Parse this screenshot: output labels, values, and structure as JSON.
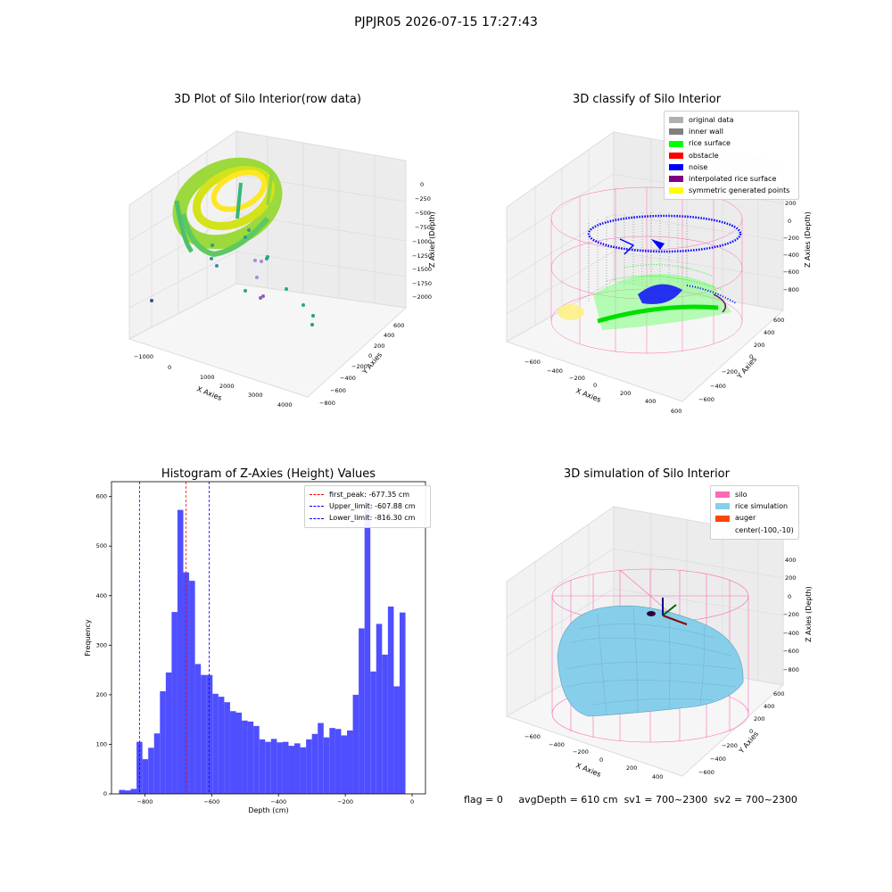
{
  "suptitle": "PJPJR05 2026-07-15 17:27:43",
  "panels": {
    "raw": {
      "title": "3D Plot of Silo Interior(row data)",
      "xlabel": "X Axies",
      "ylabel": "Y Axies",
      "zlabel": "Z Axies (Depth)",
      "xticks": [
        "−1000",
        "0",
        "1000",
        "2000",
        "3000",
        "4000"
      ],
      "yticks": [
        "−800",
        "−600",
        "−400",
        "−200",
        "0",
        "200",
        "400",
        "600"
      ],
      "zticks": [
        "0",
        "−250",
        "−500",
        "−750",
        "−1000",
        "−1250",
        "−1500",
        "−1750",
        "−2000"
      ]
    },
    "classify": {
      "title": "3D classify of Silo Interior",
      "xlabel": "X Axies",
      "ylabel": "Y Axies",
      "zlabel": "Z Axies (Depth)",
      "xticks": [
        "−600",
        "−400",
        "−200",
        "0",
        "200",
        "400",
        "600"
      ],
      "yticks": [
        "−600",
        "−400",
        "−200",
        "0",
        "200",
        "400",
        "600"
      ],
      "zticks": [
        "200",
        "0",
        "−200",
        "−400",
        "−600",
        "−800"
      ],
      "legend": [
        {
          "label": "original data",
          "color": "#b0b0b0"
        },
        {
          "label": "inner wall",
          "color": "#808080"
        },
        {
          "label": "rice surface",
          "color": "#00ff00"
        },
        {
          "label": "obstacle",
          "color": "#ff0000"
        },
        {
          "label": "noise",
          "color": "#0000ff"
        },
        {
          "label": "interpolated rice surface",
          "color": "#800080"
        },
        {
          "label": "symmetric generated points",
          "color": "#ffff00"
        }
      ]
    },
    "simulation": {
      "title": "3D simulation of Silo Interior",
      "xlabel": "X Axies",
      "ylabel": "Y Axies",
      "zlabel": "Z Axies (Depth)",
      "xticks": [
        "−600",
        "−400",
        "−200",
        "0",
        "200",
        "400"
      ],
      "yticks": [
        "−600",
        "−400",
        "−200",
        "0",
        "200",
        "400",
        "600"
      ],
      "zticks": [
        "400",
        "200",
        "0",
        "−200",
        "−400",
        "−600",
        "−800"
      ],
      "legend": [
        {
          "label": "silo",
          "color": "#ff69b4"
        },
        {
          "label": "rice simulation",
          "color": "#87ceeb"
        },
        {
          "label": "auger",
          "color": "#ff4500"
        },
        {
          "label": "center(-100,-10)",
          "color": ""
        }
      ]
    }
  },
  "footer": {
    "flag": "flag = 0",
    "avg": "avgDepth = 610 cm",
    "sv1": "sv1 = 700~2300",
    "sv2": "sv2 = 700~2300"
  },
  "chart_data": [
    {
      "type": "bar",
      "title": "Histogram of Z-Axies (Height) Values",
      "xlabel": "Depth (cm)",
      "ylabel": "Frequency",
      "xlim": [
        -900,
        40
      ],
      "ylim": [
        0,
        630
      ],
      "xticks": [
        -800,
        -600,
        -400,
        -200,
        0
      ],
      "yticks": [
        0,
        100,
        200,
        300,
        400,
        500,
        600
      ],
      "bin_width": 17.5,
      "bin_start": -877.5,
      "values": [
        8,
        7,
        10,
        105,
        70,
        93,
        122,
        207,
        245,
        367,
        573,
        447,
        430,
        262,
        240,
        240,
        202,
        196,
        185,
        167,
        164,
        148,
        146,
        137,
        110,
        105,
        111,
        104,
        105,
        97,
        102,
        94,
        110,
        121,
        143,
        114,
        133,
        131,
        118,
        128,
        200,
        334,
        590,
        247,
        343,
        281,
        378,
        217,
        366,
        0
      ],
      "color": "#4f4fff",
      "vlines": [
        {
          "label": "first_peak: -677.35 cm",
          "x": -677.35,
          "color": "#ff0000"
        },
        {
          "label": "Upper_limit: -607.88 cm",
          "x": -607.88,
          "color": "#0000ff"
        },
        {
          "label": "Lower_limit: -816.30 cm",
          "x": -816.3,
          "color": "#0000ff"
        }
      ],
      "legend_position": "top-right"
    }
  ]
}
